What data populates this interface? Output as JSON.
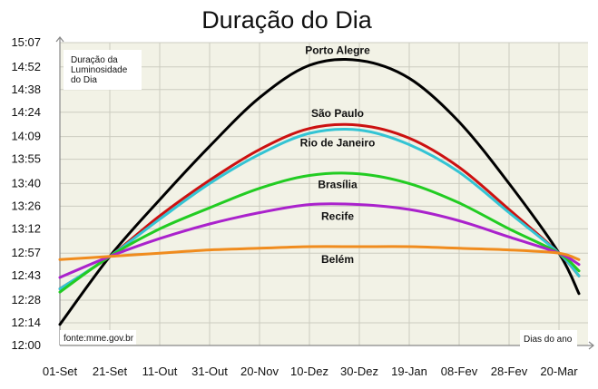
{
  "chart_data": {
    "type": "line",
    "title": "Duração do Dia",
    "ylabel_lines": [
      "Duração da",
      "Luminosidade",
      "do Dia"
    ],
    "xlabel": "Dias do ano",
    "source": "fonte:mme.gov.br",
    "x_ticks": [
      "01-Set",
      "21-Set",
      "11-Out",
      "31-Out",
      "20-Nov",
      "10-Dez",
      "30-Dez",
      "19-Jan",
      "08-Fev",
      "28-Fev",
      "20-Mar"
    ],
    "y_ticks": [
      "12:00",
      "12:14",
      "12:28",
      "12:43",
      "12:57",
      "13:12",
      "13:26",
      "13:40",
      "13:55",
      "14:09",
      "14:24",
      "14:38",
      "14:52",
      "15:07"
    ],
    "ylim_minutes": [
      720,
      907
    ],
    "grid": true,
    "colors": {
      "background": "#f2f2e6",
      "grid": "#ccccc0",
      "axis": "#888888"
    },
    "series": [
      {
        "name": "Porto Alegre",
        "color": "#000000",
        "x": [
          "01-Set",
          "21-Set",
          "11-Out",
          "31-Out",
          "20-Nov",
          "10-Dez",
          "30-Dez",
          "19-Jan",
          "08-Fev",
          "28-Fev",
          "20-Mar",
          "31-Mar"
        ],
        "minutes": [
          733,
          775,
          810,
          843,
          873,
          893,
          896,
          885,
          858,
          820,
          777,
          752
        ]
      },
      {
        "name": "São Paulo",
        "color": "#cc1111",
        "x": [
          "01-Set",
          "21-Set",
          "11-Out",
          "31-Out",
          "20-Nov",
          "10-Dez",
          "30-Dez",
          "19-Jan",
          "08-Fev",
          "28-Fev",
          "20-Mar",
          "31-Mar"
        ],
        "minutes": [
          755,
          775,
          800,
          822,
          841,
          854,
          856,
          848,
          830,
          804,
          777,
          763
        ]
      },
      {
        "name": "Rio de Janeiro",
        "color": "#33c4d4",
        "x": [
          "01-Set",
          "21-Set",
          "11-Out",
          "31-Out",
          "20-Nov",
          "10-Dez",
          "30-Dez",
          "19-Jan",
          "08-Fev",
          "28-Fev",
          "20-Mar",
          "31-Mar"
        ],
        "minutes": [
          755,
          775,
          798,
          820,
          838,
          851,
          853,
          844,
          827,
          802,
          777,
          763
        ]
      },
      {
        "name": "Brasília",
        "color": "#22cc22",
        "x": [
          "01-Set",
          "21-Set",
          "11-Out",
          "31-Out",
          "20-Nov",
          "10-Dez",
          "30-Dez",
          "19-Jan",
          "08-Fev",
          "28-Fev",
          "20-Mar",
          "31-Mar"
        ],
        "minutes": [
          753,
          775,
          792,
          805,
          817,
          825,
          826,
          820,
          808,
          792,
          777,
          766
        ]
      },
      {
        "name": "Recife",
        "color": "#aa22cc",
        "x": [
          "01-Set",
          "21-Set",
          "11-Out",
          "31-Out",
          "20-Nov",
          "10-Dez",
          "30-Dez",
          "19-Jan",
          "08-Fev",
          "28-Fev",
          "20-Mar",
          "31-Mar"
        ],
        "minutes": [
          762,
          775,
          786,
          795,
          802,
          807,
          807,
          804,
          797,
          787,
          777,
          770
        ]
      },
      {
        "name": "Belém",
        "color": "#f08c1e",
        "x": [
          "01-Set",
          "21-Set",
          "11-Out",
          "31-Out",
          "20-Nov",
          "10-Dez",
          "30-Dez",
          "19-Jan",
          "08-Fev",
          "28-Fev",
          "20-Mar",
          "31-Mar"
        ],
        "minutes": [
          773,
          775,
          777,
          779,
          780,
          781,
          781,
          781,
          780,
          779,
          777,
          773
        ]
      }
    ]
  }
}
